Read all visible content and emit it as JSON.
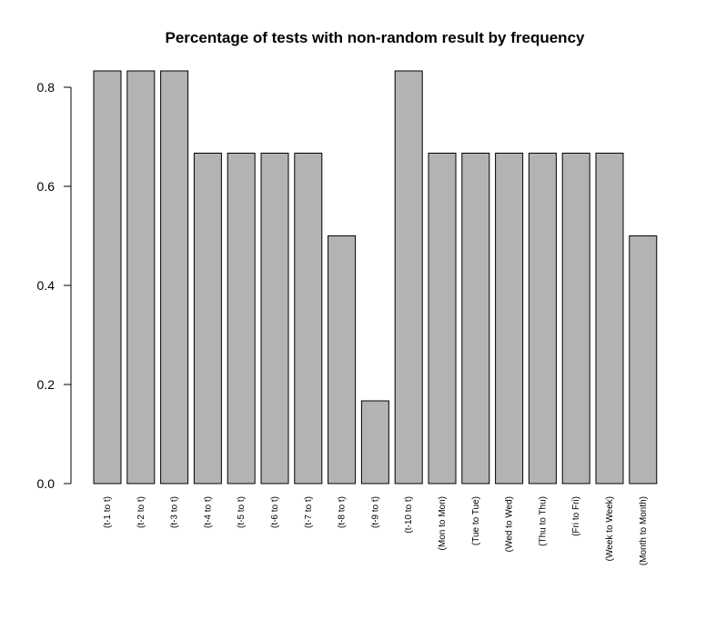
{
  "chart_data": {
    "type": "bar",
    "title": "Percentage of tests with non-random result by frequency",
    "xlabel": "",
    "ylabel": "",
    "categories": [
      "(t-1 to t)",
      "(t-2 to t)",
      "(t-3 to t)",
      "(t-4 to t)",
      "(t-5 to t)",
      "(t-6 to t)",
      "(t-7 to t)",
      "(t-8 to t)",
      "(t-9 to t)",
      "(t-10 to t)",
      "(Mon to Mon)",
      "(Tue to Tue)",
      "(Wed to Wed)",
      "(Thu to Thu)",
      "(Fri to Fri)",
      "(Week to Week)",
      "(Month to Month)"
    ],
    "values": [
      0.833,
      0.833,
      0.833,
      0.667,
      0.667,
      0.667,
      0.667,
      0.5,
      0.167,
      0.833,
      0.667,
      0.667,
      0.667,
      0.667,
      0.667,
      0.667,
      0.5
    ],
    "yticks": [
      0.0,
      0.2,
      0.4,
      0.6,
      0.8
    ],
    "ytick_labels": [
      "0.0",
      "0.2",
      "0.4",
      "0.6",
      "0.8"
    ],
    "ylim": [
      0,
      0.833
    ],
    "grid": false,
    "legend": "none",
    "bar_color": "#b3b3b3"
  }
}
